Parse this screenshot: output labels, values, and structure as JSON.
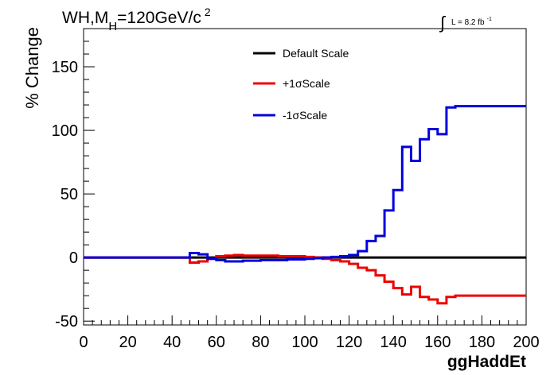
{
  "chart_data": {
    "type": "line",
    "title": "WH,M_H=120GeV/c^2",
    "title_parts": {
      "main": "WH,M",
      "sub": "H",
      "rest": "=120GeV/c",
      "sup": "2"
    },
    "lumi_label": {
      "integral": "∫",
      "text": "L = 8.2 fb",
      "sup": "-1"
    },
    "xlabel": "ggHaddEt",
    "ylabel": "% Change",
    "xlim": [
      0,
      200
    ],
    "ylim": [
      -53,
      180
    ],
    "x_ticks": [
      0,
      20,
      40,
      60,
      80,
      100,
      120,
      140,
      160,
      180,
      200
    ],
    "y_ticks": [
      -50,
      0,
      50,
      100,
      150
    ],
    "legend_position": "top-center",
    "grid": false,
    "series": [
      {
        "name": "Default Scale",
        "color": "#000000",
        "x": [
          0,
          200
        ],
        "y": [
          0,
          0
        ]
      },
      {
        "name": "+1σScale",
        "color": "#ee0000",
        "x": [
          0,
          4,
          8,
          12,
          16,
          20,
          24,
          28,
          32,
          36,
          40,
          44,
          48,
          52,
          56,
          60,
          64,
          68,
          72,
          76,
          80,
          84,
          88,
          92,
          96,
          100,
          104,
          108,
          112,
          116,
          120,
          124,
          128,
          132,
          136,
          140,
          144,
          148,
          152,
          156,
          160,
          164,
          168,
          172,
          176,
          180,
          184,
          188,
          192,
          196,
          200
        ],
        "y": [
          0,
          0,
          0,
          0,
          0,
          0,
          0,
          0,
          0,
          0,
          0,
          0,
          -4,
          -3,
          -1,
          1,
          1.5,
          2,
          1.5,
          1.5,
          1.5,
          1.5,
          1,
          1,
          1,
          0.5,
          0,
          -1,
          -2,
          -3,
          -5,
          -8,
          -10,
          -14,
          -19,
          -24,
          -29,
          -23,
          -31,
          -33,
          -36,
          -31,
          -30,
          -30,
          -30,
          -30,
          -30,
          -30,
          -30,
          -30,
          -30
        ]
      },
      {
        "name": "-1σScale",
        "color": "#0000dd",
        "x": [
          0,
          4,
          8,
          12,
          16,
          20,
          24,
          28,
          32,
          36,
          40,
          44,
          48,
          52,
          56,
          60,
          64,
          68,
          72,
          76,
          80,
          84,
          88,
          92,
          96,
          100,
          104,
          108,
          112,
          116,
          120,
          124,
          128,
          132,
          136,
          140,
          144,
          148,
          152,
          156,
          160,
          164,
          168,
          172,
          176,
          180,
          184,
          188,
          192,
          196,
          200
        ],
        "y": [
          0,
          0,
          0,
          0,
          0,
          0,
          0,
          0,
          0,
          0,
          0,
          0,
          3.5,
          2.5,
          -1,
          -2,
          -3,
          -3,
          -2.5,
          -2.5,
          -2,
          -2,
          -2,
          -1.5,
          -1.5,
          -1,
          -0.5,
          0,
          0.5,
          1,
          2,
          5,
          13,
          17,
          37,
          53,
          87,
          76,
          93,
          101,
          97,
          118,
          119,
          119,
          119,
          119,
          119,
          119,
          119,
          119,
          119
        ]
      }
    ]
  }
}
